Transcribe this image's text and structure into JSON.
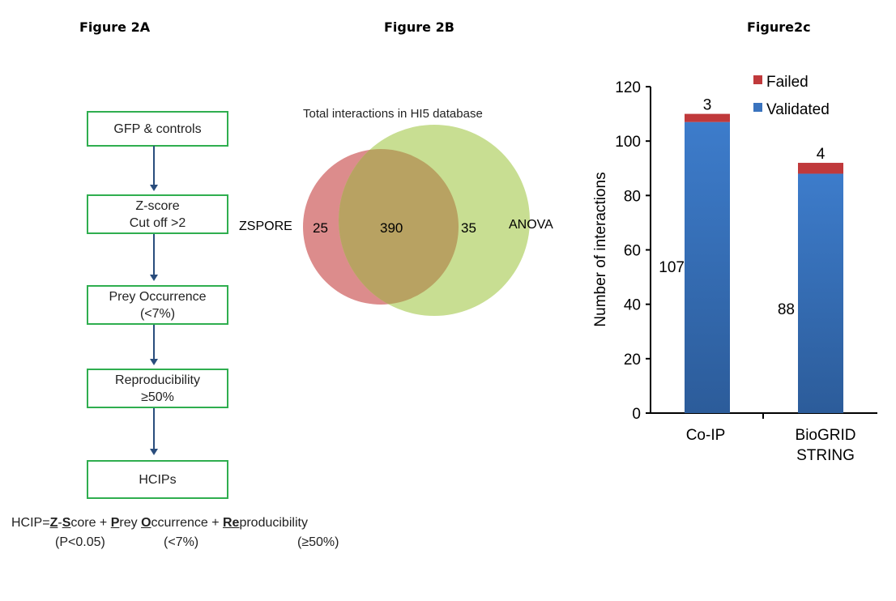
{
  "figure_a": {
    "title": "Figure 2A",
    "steps": [
      {
        "line1": "GFP & controls",
        "line2": ""
      },
      {
        "line1": "Z-score",
        "line2": "Cut off >2"
      },
      {
        "line1": "Prey Occurrence",
        "line2": "(<7%)"
      },
      {
        "line1": "Reproducibility",
        "line2": "≥50%"
      },
      {
        "line1": "HCIPs",
        "line2": ""
      }
    ],
    "formula": {
      "prefix": "HCIP=",
      "z": "Z",
      "dash": "-",
      "s": "S",
      "core": "core + ",
      "p": "P",
      "rey": "rey ",
      "o": "O",
      "ccurrence": "ccurrence + ",
      "re": "Re",
      "producibility": "producibility",
      "sub1": "(P<0.05)",
      "sub2": "(<7%)",
      "sub3": "(≥50%)"
    }
  },
  "figure_b": {
    "title": "Figure 2B",
    "subtitle": "Total interactions in HI5 database",
    "left_label": "ZSPORE",
    "right_label": "ANOVA",
    "left_only": "25",
    "overlap": "390",
    "right_only": "35",
    "colors": {
      "left": "#d98a8a",
      "right": "#c6dc8e",
      "overlap": "#b9a060"
    }
  },
  "chart_data": {
    "type": "bar",
    "stacked": true,
    "title": "Figure2c",
    "xlabel": "",
    "ylabel": "Number  of interactions",
    "categories": [
      "Co-IP",
      "BioGRID\nSTRING"
    ],
    "category_lines": [
      [
        "Co-IP"
      ],
      [
        "BioGRID",
        "STRING"
      ]
    ],
    "series": [
      {
        "name": "Validated",
        "values": [
          107,
          88
        ],
        "color": "#3a73be"
      },
      {
        "name": "Failed",
        "values": [
          3,
          4
        ],
        "color": "#c0393b"
      }
    ],
    "data_labels": {
      "validated": [
        "107",
        "88"
      ],
      "failed": [
        "3",
        "4"
      ]
    },
    "ylim": [
      0,
      120
    ],
    "yticks": [
      "0",
      "20",
      "40",
      "60",
      "80",
      "100",
      "120"
    ],
    "grid": false,
    "legend": "top-right"
  }
}
